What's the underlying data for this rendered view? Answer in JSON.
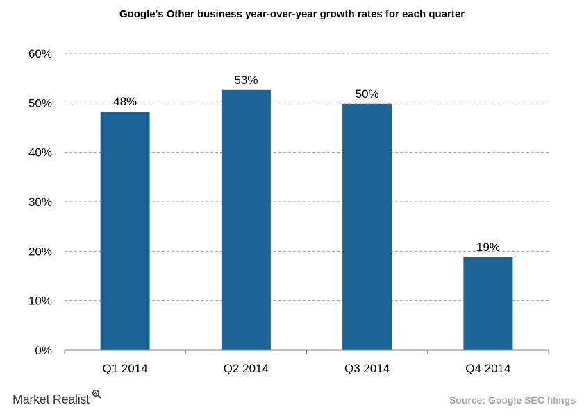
{
  "chart_data": {
    "type": "bar",
    "title": "Google's Other business year-over-year growth rates for each quarter",
    "categories": [
      "Q1 2014",
      "Q2 2014",
      "Q3 2014",
      "Q4 2014"
    ],
    "values": [
      48.2,
      52.6,
      49.8,
      18.8
    ],
    "data_labels": [
      "48%",
      "53%",
      "50%",
      "19%"
    ],
    "ylim": [
      0,
      60
    ],
    "yticks": [
      0,
      10,
      20,
      30,
      40,
      50,
      60
    ],
    "ytick_labels": [
      "0%",
      "10%",
      "20%",
      "30%",
      "40%",
      "50%",
      "60%"
    ],
    "grid": true,
    "bar_color": "#1a6496",
    "xlabel": "",
    "ylabel": ""
  },
  "footer": {
    "brand": "Market Realist",
    "source": "Source: Google SEC filings"
  }
}
